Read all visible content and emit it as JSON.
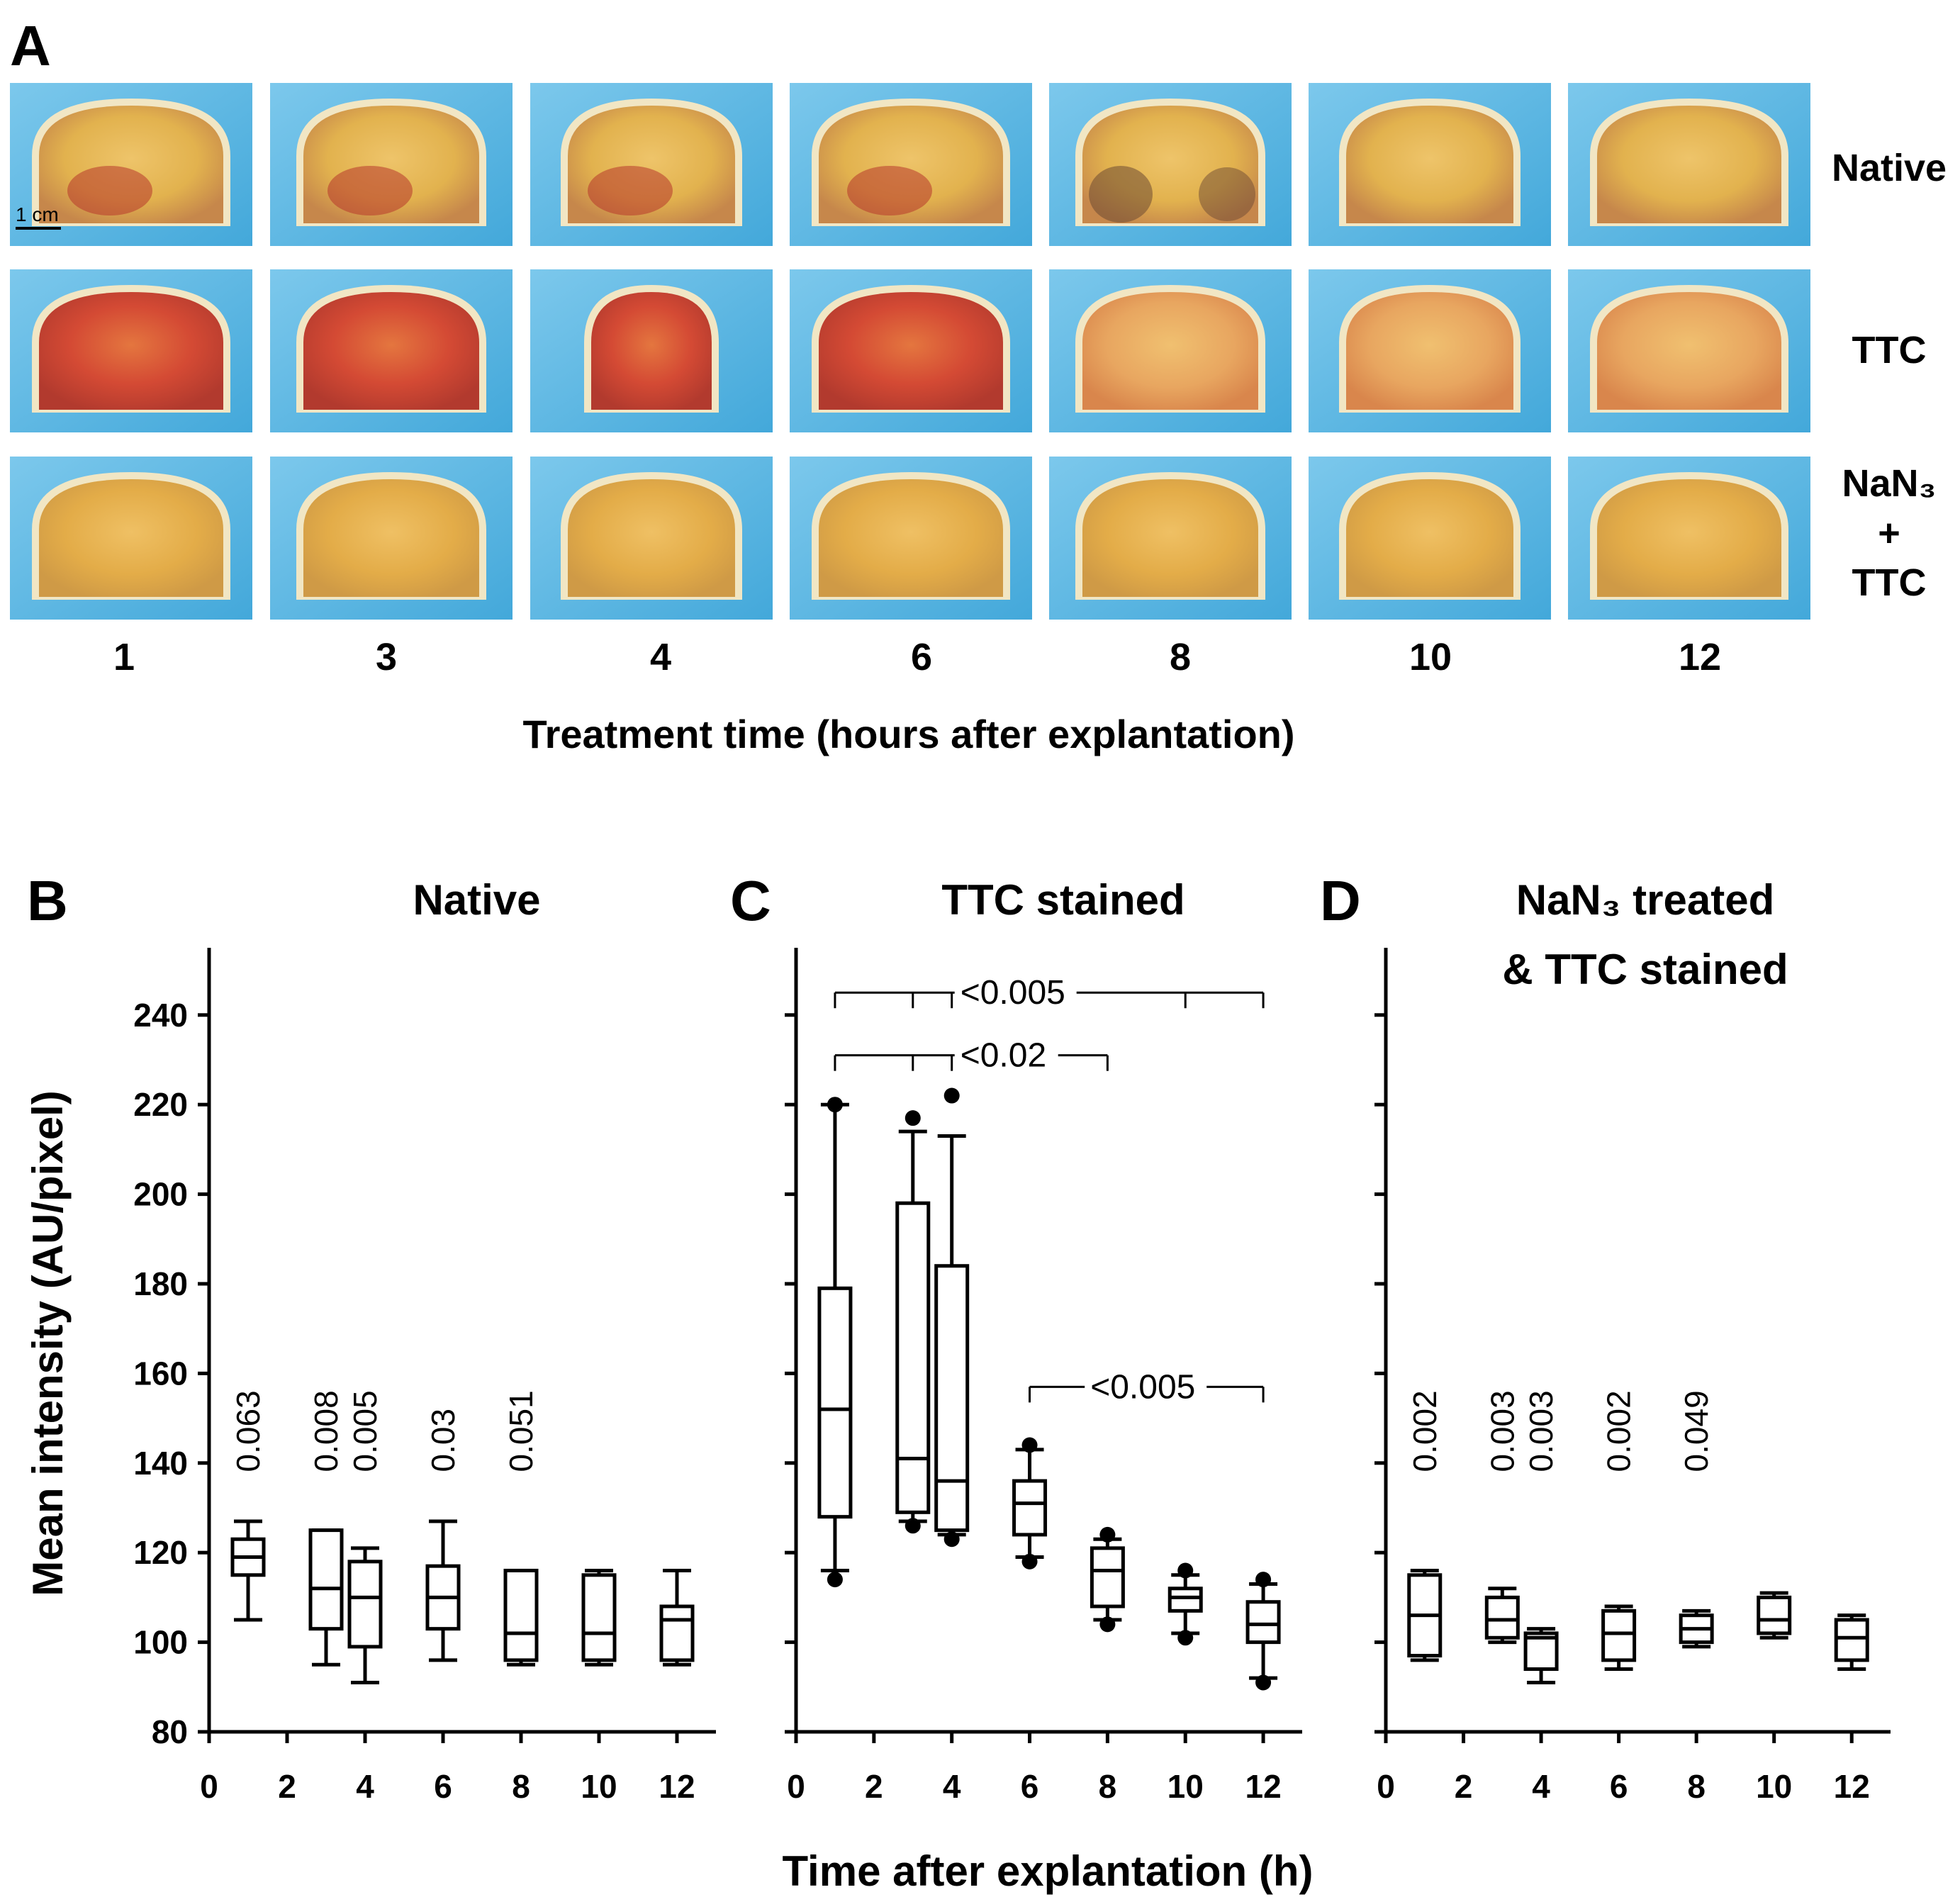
{
  "panel_a": {
    "letter": "A",
    "scale_bar_label": "1 cm",
    "rows": [
      {
        "label": [
          "Native"
        ]
      },
      {
        "label": [
          "TTC"
        ]
      },
      {
        "label": [
          "NaN₃",
          "+",
          "TTC"
        ]
      }
    ],
    "time_labels": [
      "1",
      "3",
      "4",
      "6",
      "8",
      "10",
      "12"
    ],
    "xlabel": "Treatment time (hours after explantation)"
  },
  "colors": {
    "photo_background": "#4fb2e0",
    "photo_background_light": "#7cc8ec",
    "native_tissue": "#e2b24e",
    "ttc_tissue": "#d44a34",
    "nan3_tissue": "#e3ac48",
    "rim": "#f1e6c4",
    "ink": "#000000"
  },
  "shared": {
    "ylabel": "Mean intensity (AU/pixel)",
    "xlabel": "Time after explantation (h)"
  },
  "chart_data": [
    {
      "type": "boxplot",
      "panel": "B",
      "title": "Native",
      "xlim": [
        0,
        13
      ],
      "ylim": [
        80,
        255
      ],
      "xticks": [
        0,
        2,
        4,
        6,
        8,
        10,
        12
      ],
      "yticks": [
        80,
        100,
        120,
        140,
        160,
        180,
        200,
        220,
        240
      ],
      "boxes": [
        {
          "x": 1,
          "whisker_low": 105,
          "q1": 115,
          "median": 119,
          "q3": 123,
          "whisker_high": 127,
          "outliers": []
        },
        {
          "x": 3,
          "whisker_low": 95,
          "q1": 103,
          "median": 112,
          "q3": 125,
          "whisker_high": 125,
          "outliers": []
        },
        {
          "x": 4,
          "whisker_low": 91,
          "q1": 99,
          "median": 110,
          "q3": 118,
          "whisker_high": 121,
          "outliers": []
        },
        {
          "x": 6,
          "whisker_low": 96,
          "q1": 103,
          "median": 110,
          "q3": 117,
          "whisker_high": 127,
          "outliers": []
        },
        {
          "x": 8,
          "whisker_low": 95,
          "q1": 96,
          "median": 102,
          "q3": 116,
          "whisker_high": 116,
          "outliers": []
        },
        {
          "x": 10,
          "whisker_low": 95,
          "q1": 96,
          "median": 102,
          "q3": 115,
          "whisker_high": 116,
          "outliers": []
        },
        {
          "x": 12,
          "whisker_low": 95,
          "q1": 96,
          "median": 105,
          "q3": 108,
          "whisker_high": 116,
          "outliers": []
        }
      ],
      "annotations": [
        {
          "x": 1,
          "text": "0.063"
        },
        {
          "x": 3,
          "text": "0.008"
        },
        {
          "x": 4,
          "text": "0.005"
        },
        {
          "x": 6,
          "text": "0.03"
        },
        {
          "x": 8,
          "text": "0.051"
        }
      ],
      "brackets": []
    },
    {
      "type": "boxplot",
      "panel": "C",
      "title": "TTC stained",
      "xlim": [
        0,
        13
      ],
      "ylim": [
        80,
        255
      ],
      "xticks": [
        0,
        2,
        4,
        6,
        8,
        10,
        12
      ],
      "yticks": [
        80,
        100,
        120,
        140,
        160,
        180,
        200,
        220,
        240
      ],
      "boxes": [
        {
          "x": 1,
          "whisker_low": 116,
          "q1": 128,
          "median": 152,
          "q3": 179,
          "whisker_high": 220,
          "outliers": [
            114,
            220
          ]
        },
        {
          "x": 3,
          "whisker_low": 127,
          "q1": 129,
          "median": 141,
          "q3": 198,
          "whisker_high": 214,
          "outliers": [
            126,
            217
          ]
        },
        {
          "x": 4,
          "whisker_low": 124,
          "q1": 125,
          "median": 136,
          "q3": 184,
          "whisker_high": 213,
          "outliers": [
            123,
            222
          ]
        },
        {
          "x": 6,
          "whisker_low": 119,
          "q1": 124,
          "median": 131,
          "q3": 136,
          "whisker_high": 143,
          "outliers": [
            118,
            144
          ]
        },
        {
          "x": 8,
          "whisker_low": 105,
          "q1": 108,
          "median": 116,
          "q3": 121,
          "whisker_high": 123,
          "outliers": [
            104,
            124
          ]
        },
        {
          "x": 10,
          "whisker_low": 102,
          "q1": 107,
          "median": 110,
          "q3": 112,
          "whisker_high": 115,
          "outliers": [
            101,
            116
          ]
        },
        {
          "x": 12,
          "whisker_low": 92,
          "q1": 100,
          "median": 104,
          "q3": 109,
          "whisker_high": 113,
          "outliers": [
            91,
            114
          ]
        }
      ],
      "annotations": [],
      "brackets": [
        {
          "y": 245,
          "x_start": 1,
          "x_end": 12,
          "ticks": [
            3,
            4,
            10
          ],
          "label": "<0.005"
        },
        {
          "y": 231,
          "x_start": 1,
          "x_end": 8,
          "ticks": [
            3,
            4
          ],
          "label": "<0.02"
        },
        {
          "y": 157,
          "x_start": 6,
          "x_end": 12,
          "ticks": [],
          "label": "<0.005"
        }
      ]
    },
    {
      "type": "boxplot",
      "panel": "D",
      "title_lines": [
        "NaN₃ treated",
        "& TTC stained"
      ],
      "xlim": [
        0,
        13
      ],
      "ylim": [
        80,
        255
      ],
      "xticks": [
        0,
        2,
        4,
        6,
        8,
        10,
        12
      ],
      "yticks": [
        80,
        100,
        120,
        140,
        160,
        180,
        200,
        220,
        240
      ],
      "boxes": [
        {
          "x": 1,
          "whisker_low": 96,
          "q1": 97,
          "median": 106,
          "q3": 115,
          "whisker_high": 116,
          "outliers": []
        },
        {
          "x": 3,
          "whisker_low": 100,
          "q1": 101,
          "median": 105,
          "q3": 110,
          "whisker_high": 112,
          "outliers": []
        },
        {
          "x": 4,
          "whisker_low": 91,
          "q1": 94,
          "median": 101,
          "q3": 102,
          "whisker_high": 103,
          "outliers": []
        },
        {
          "x": 6,
          "whisker_low": 94,
          "q1": 96,
          "median": 102,
          "q3": 107,
          "whisker_high": 108,
          "outliers": []
        },
        {
          "x": 8,
          "whisker_low": 99,
          "q1": 100,
          "median": 103,
          "q3": 106,
          "whisker_high": 107,
          "outliers": []
        },
        {
          "x": 10,
          "whisker_low": 101,
          "q1": 102,
          "median": 105,
          "q3": 110,
          "whisker_high": 111,
          "outliers": []
        },
        {
          "x": 12,
          "whisker_low": 94,
          "q1": 96,
          "median": 101,
          "q3": 105,
          "whisker_high": 106,
          "outliers": []
        }
      ],
      "annotations": [
        {
          "x": 1,
          "text": "0.002"
        },
        {
          "x": 3,
          "text": "0.003"
        },
        {
          "x": 4,
          "text": "0.003"
        },
        {
          "x": 6,
          "text": "0.002"
        },
        {
          "x": 8,
          "text": "0.049"
        }
      ],
      "brackets": []
    }
  ]
}
